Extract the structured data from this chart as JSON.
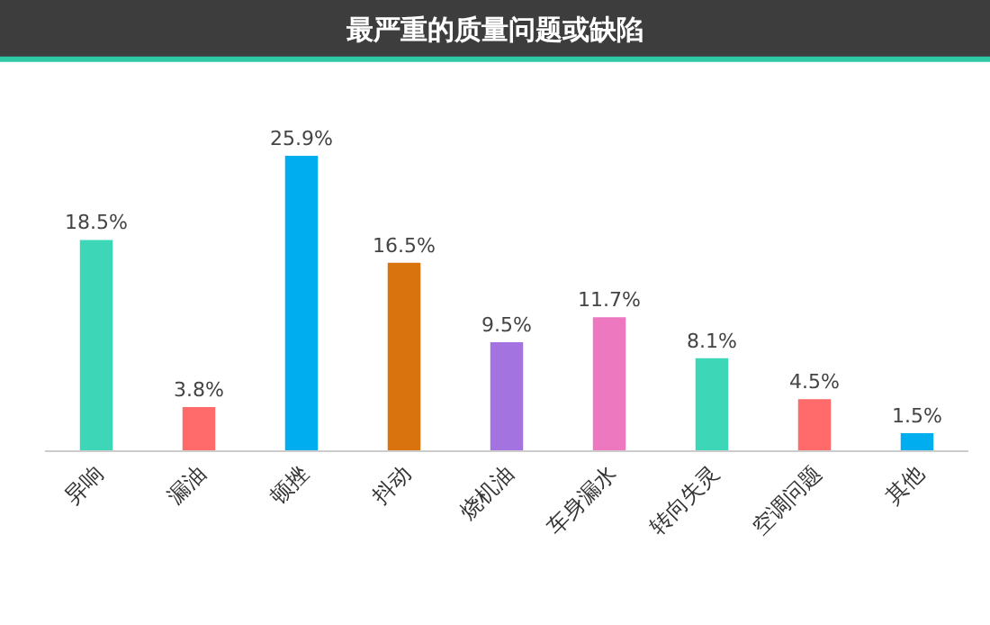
{
  "chart_data": {
    "type": "bar",
    "title": "最严重的质量问题或缺陷",
    "categories": [
      "异响",
      "漏油",
      "顿挫",
      "抖动",
      "烧机油",
      "车身漏水",
      "转向失灵",
      "空调问题",
      "其他"
    ],
    "values": [
      18.5,
      3.8,
      25.9,
      16.5,
      9.5,
      11.7,
      8.1,
      4.5,
      1.5
    ],
    "value_labels": [
      "18.5%",
      "3.8%",
      "25.9%",
      "16.5%",
      "9.5%",
      "11.7%",
      "8.1%",
      "4.5%",
      "1.5%"
    ],
    "colors": [
      "#3dd6b6",
      "#ff6b6b",
      "#00aeef",
      "#d9730d",
      "#a374e0",
      "#ee78c0",
      "#3dd6b6",
      "#ff6b6b",
      "#00aeef"
    ],
    "legend": false
  }
}
